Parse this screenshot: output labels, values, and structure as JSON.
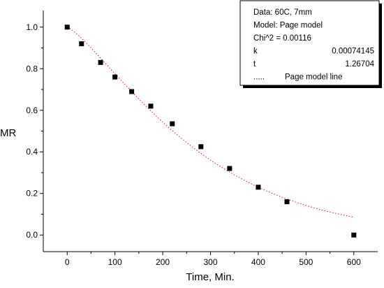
{
  "chart_data": {
    "type": "scatter",
    "title": "",
    "xlabel": "Time, Min.",
    "ylabel": "MR",
    "xlim": [
      -50,
      650
    ],
    "ylim": [
      -0.08,
      1.08
    ],
    "xticks": [
      0,
      100,
      200,
      300,
      400,
      500,
      600
    ],
    "yticks": [
      0.0,
      0.2,
      0.4,
      0.6,
      0.8,
      1.0
    ],
    "xtick_labels": [
      "0",
      "100",
      "200",
      "300",
      "400",
      "500",
      "600"
    ],
    "ytick_labels": [
      "0.0",
      "0.2",
      "0.4",
      "0.6",
      "0.8",
      "1.0"
    ],
    "grid": false,
    "legend_position": "top-right",
    "series": [
      {
        "kind": "points",
        "marker": "square",
        "color": "#000000",
        "x": [
          0,
          30,
          70,
          100,
          135,
          175,
          220,
          280,
          340,
          400,
          460,
          600
        ],
        "y": [
          1.0,
          0.92,
          0.83,
          0.76,
          0.69,
          0.62,
          0.535,
          0.425,
          0.32,
          0.23,
          0.16,
          0.0
        ]
      },
      {
        "kind": "line",
        "name": "Page model line",
        "style": "dotted",
        "color": "#ff0000",
        "model": {
          "k": 0.00074145,
          "n": 1.26704,
          "x_start": 0,
          "x_end": 600
        }
      }
    ],
    "legend": {
      "lines": [
        {
          "label": "Data: 60C, 7mm",
          "value": ""
        },
        {
          "label": "Model: Page model",
          "value": ""
        },
        {
          "label": "Chi^2 = 0.00116",
          "value": ""
        },
        {
          "label": "k",
          "value": "0.00074145"
        },
        {
          "label": "t",
          "value": "1.26704"
        },
        {
          "label": ".....",
          "value": "Page model line"
        }
      ]
    }
  }
}
